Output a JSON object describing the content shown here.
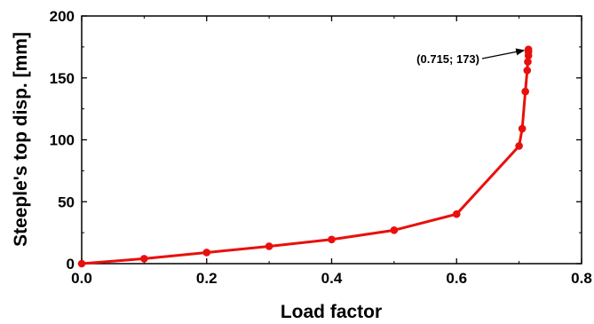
{
  "chart_data": {
    "type": "line",
    "xlabel": "Load factor",
    "ylabel": "Steeple's top disp. [mm]",
    "xlim": [
      0,
      0.8
    ],
    "ylim": [
      0,
      200
    ],
    "xticks": [
      "0.0",
      "0.2",
      "0.4",
      "0.6",
      "0.8"
    ],
    "yticks": [
      "0",
      "50",
      "100",
      "150",
      "200"
    ],
    "grid": false,
    "series": [
      {
        "color": "#e8100c",
        "x": [
          0.0,
          0.1,
          0.2,
          0.3,
          0.4,
          0.5,
          0.6,
          0.7,
          0.705,
          0.71,
          0.713,
          0.714,
          0.715,
          0.715,
          0.715
        ],
        "y": [
          0,
          4,
          9,
          14,
          19.5,
          27,
          40,
          95,
          109,
          139,
          156,
          163,
          168,
          171,
          173
        ]
      }
    ],
    "annotation": {
      "text": "(0.715; 173)",
      "x": 0.715,
      "y": 173
    }
  }
}
